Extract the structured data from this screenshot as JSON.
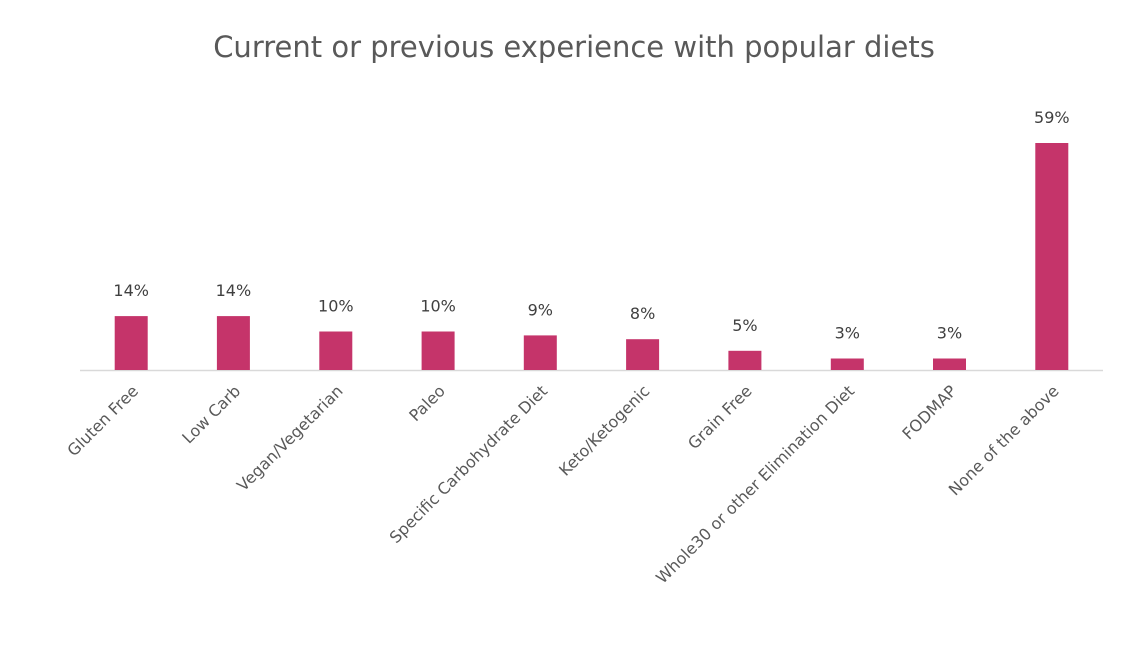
{
  "chart_data": {
    "type": "bar",
    "title": "Current or previous experience with popular diets",
    "xlabel": "",
    "ylabel": "",
    "ylim": [
      0,
      59
    ],
    "grid": false,
    "categories": [
      "Gluten Free",
      "Low Carb",
      "Vegan/Vegetarian",
      "Paleo",
      "Specific Carbohydrate Diet",
      "Keto/Ketogenic",
      "Grain Free",
      "Whole30 or other Elimination Diet",
      "FODMAP",
      "None of the above"
    ],
    "values": [
      14,
      14,
      10,
      10,
      9,
      8,
      5,
      3,
      3,
      59
    ],
    "data_labels": [
      "14%",
      "14%",
      "10%",
      "10%",
      "9%",
      "8%",
      "5%",
      "3%",
      "3%",
      "59%"
    ],
    "bar_color": "#C5346A",
    "axis_color": "#D9D9D9",
    "title_color": "#595959"
  }
}
